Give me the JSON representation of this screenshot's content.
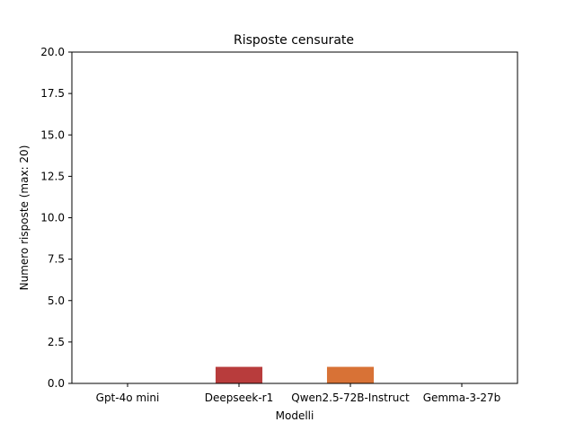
{
  "chart_data": {
    "type": "bar",
    "title": "Risposte censurate",
    "xlabel": "Modelli",
    "ylabel": "Numero risposte (max: 20)",
    "categories": [
      "Gpt-4o mini",
      "Deepseek-r1",
      "Qwen2.5-72B-Instruct",
      "Gemma-3-27b"
    ],
    "values": [
      0,
      1,
      1,
      0
    ],
    "bar_colors": [
      "#c94a4a",
      "#b83c3c",
      "#d87236",
      "#d8a13a"
    ],
    "ylim": [
      0,
      20
    ],
    "yticks": [
      "0.0",
      "2.5",
      "5.0",
      "7.5",
      "10.0",
      "12.5",
      "15.0",
      "17.5",
      "20.0"
    ],
    "grid": false,
    "legend": "none"
  }
}
